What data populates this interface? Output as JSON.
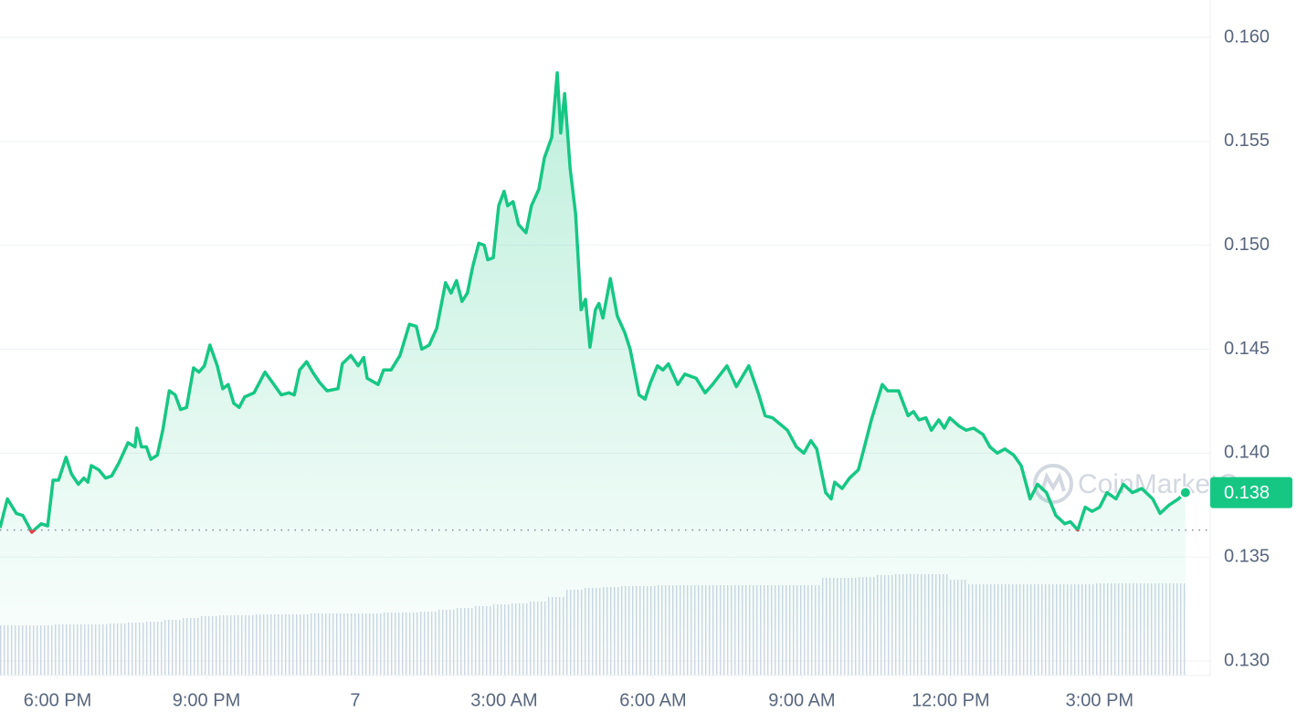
{
  "chart_data": {
    "type": "line",
    "x": [
      -1.16,
      -1.01,
      -0.83,
      -0.7,
      -0.52,
      -0.33,
      -0.2,
      -0.09,
      0.02,
      0.17,
      0.28,
      0.42,
      0.53,
      0.61,
      0.68,
      0.83,
      0.97,
      1.09,
      1.23,
      1.42,
      1.56,
      1.6,
      1.69,
      1.79,
      1.88,
      2.01,
      2.12,
      2.25,
      2.37,
      2.48,
      2.6,
      2.74,
      2.85,
      2.96,
      3.07,
      3.22,
      3.33,
      3.44,
      3.55,
      3.66,
      3.77,
      3.96,
      4.18,
      4.36,
      4.51,
      4.66,
      4.77,
      4.88,
      5.02,
      5.14,
      5.28,
      5.43,
      5.65,
      5.74,
      5.91,
      6.06,
      6.17,
      6.24,
      6.46,
      6.57,
      6.72,
      6.9,
      7.09,
      7.23,
      7.34,
      7.49,
      7.64,
      7.82,
      7.93,
      8.04,
      8.15,
      8.26,
      8.37,
      8.49,
      8.6,
      8.67,
      8.78,
      8.89,
      9.0,
      9.07,
      9.18,
      9.29,
      9.44,
      9.55,
      9.7,
      9.81,
      9.96,
      10.07,
      10.14,
      10.22,
      10.33,
      10.44,
      10.55,
      10.64,
      10.73,
      10.84,
      10.91,
      10.99,
      11.14,
      11.28,
      11.43,
      11.54,
      11.72,
      11.84,
      11.95,
      12.09,
      12.2,
      12.31,
      12.5,
      12.64,
      12.87,
      13.05,
      13.2,
      13.49,
      13.68,
      13.93,
      14.12,
      14.26,
      14.41,
      14.56,
      14.71,
      14.89,
      15.04,
      15.18,
      15.3,
      15.48,
      15.59,
      15.66,
      15.81,
      15.96,
      16.14,
      16.25,
      16.4,
      16.62,
      16.73,
      16.95,
      17.14,
      17.25,
      17.36,
      17.5,
      17.61,
      17.76,
      17.87,
      17.98,
      18.17,
      18.31,
      18.46,
      18.65,
      18.79,
      18.94,
      19.09,
      19.27,
      19.42,
      19.6,
      19.75,
      19.93,
      20.12,
      20.3,
      20.41,
      20.56,
      20.71,
      20.85,
      21.0,
      21.15,
      21.33,
      21.48,
      21.66,
      21.85,
      22.07,
      22.22,
      22.4,
      22.59,
      22.73
    ],
    "values": [
      0.1364,
      0.1378,
      0.1371,
      0.137,
      0.1362,
      0.1366,
      0.1365,
      0.1387,
      0.1387,
      0.1398,
      0.139,
      0.1385,
      0.1388,
      0.1386,
      0.1394,
      0.1392,
      0.1388,
      0.1389,
      0.1395,
      0.1405,
      0.1403,
      0.1412,
      0.1403,
      0.1403,
      0.1397,
      0.1399,
      0.1411,
      0.143,
      0.1428,
      0.1421,
      0.1422,
      0.1441,
      0.1439,
      0.1442,
      0.1452,
      0.1442,
      0.1431,
      0.1433,
      0.1424,
      0.1422,
      0.1427,
      0.1429,
      0.1439,
      0.1433,
      0.1428,
      0.1429,
      0.1428,
      0.144,
      0.1444,
      0.1439,
      0.1434,
      0.143,
      0.1431,
      0.1443,
      0.1447,
      0.1442,
      0.1446,
      0.1436,
      0.1433,
      0.144,
      0.144,
      0.1447,
      0.1462,
      0.1461,
      0.145,
      0.1452,
      0.146,
      0.1482,
      0.1477,
      0.1483,
      0.1473,
      0.1477,
      0.149,
      0.1501,
      0.15,
      0.1493,
      0.1494,
      0.1519,
      0.1526,
      0.1519,
      0.1521,
      0.151,
      0.1506,
      0.1519,
      0.1527,
      0.1542,
      0.1552,
      0.1583,
      0.1554,
      0.1573,
      0.1537,
      0.1515,
      0.1469,
      0.1474,
      0.1451,
      0.1469,
      0.1472,
      0.1465,
      0.1484,
      0.1466,
      0.1458,
      0.145,
      0.1428,
      0.1426,
      0.1434,
      0.1442,
      0.144,
      0.1443,
      0.1433,
      0.1438,
      0.1436,
      0.1429,
      0.1433,
      0.1442,
      0.1432,
      0.1442,
      0.1429,
      0.1418,
      0.1417,
      0.1414,
      0.1411,
      0.1403,
      0.14,
      0.1406,
      0.1402,
      0.1381,
      0.1378,
      0.1386,
      0.1383,
      0.1388,
      0.1392,
      0.1402,
      0.1416,
      0.1433,
      0.143,
      0.143,
      0.1418,
      0.142,
      0.1416,
      0.1417,
      0.1411,
      0.1416,
      0.1412,
      0.1417,
      0.1413,
      0.1411,
      0.1412,
      0.1409,
      0.1403,
      0.14,
      0.1402,
      0.1399,
      0.1394,
      0.1378,
      0.1385,
      0.1381,
      0.137,
      0.1366,
      0.1367,
      0.1363,
      0.1374,
      0.1372,
      0.1374,
      0.1381,
      0.1378,
      0.1385,
      0.1381,
      0.1383,
      0.1378,
      0.1371,
      0.1375,
      0.1378,
      0.1381
    ],
    "color": "#16c784",
    "down_color": "#ea3943",
    "baseline": 0.1363,
    "xlim": [
      -1.16,
      23.23
    ],
    "ylim": [
      0.1293,
      0.1618
    ],
    "xticks": [
      {
        "value": 0,
        "label": "6:00 PM"
      },
      {
        "value": 3,
        "label": "9:00 PM"
      },
      {
        "value": 6,
        "label": "7"
      },
      {
        "value": 9,
        "label": "3:00 AM"
      },
      {
        "value": 12,
        "label": "6:00 AM"
      },
      {
        "value": 15,
        "label": "9:00 AM"
      },
      {
        "value": 18,
        "label": "12:00 PM"
      },
      {
        "value": 21,
        "label": "3:00 PM"
      }
    ],
    "yticks": [
      {
        "value": 0.13,
        "label": "0.130"
      },
      {
        "value": 0.135,
        "label": "0.135"
      },
      {
        "value": 0.14,
        "label": "0.140"
      },
      {
        "value": 0.145,
        "label": "0.145"
      },
      {
        "value": 0.15,
        "label": "0.150"
      },
      {
        "value": 0.155,
        "label": "0.155"
      },
      {
        "value": 0.16,
        "label": "0.160"
      }
    ],
    "grid": true,
    "last_price_label": "0.138",
    "watermark": "CoinMarketCap",
    "volume": {
      "color": "#cfd6e4",
      "ylim": [
        0,
        180
      ],
      "values": [
        55,
        55,
        55,
        56,
        56,
        56,
        57,
        58,
        59,
        61,
        63,
        65,
        66,
        66,
        67,
        67,
        67,
        68,
        68,
        68,
        68,
        69,
        69,
        70,
        72,
        74,
        76,
        78,
        79,
        81,
        86,
        94,
        96,
        97,
        98,
        98,
        99,
        99,
        99,
        99,
        99,
        99,
        99,
        99,
        99,
        107,
        107,
        108,
        110,
        111,
        111,
        111,
        105,
        100,
        100,
        100,
        100,
        100,
        100,
        100,
        101,
        101,
        101,
        101,
        101
      ]
    }
  }
}
